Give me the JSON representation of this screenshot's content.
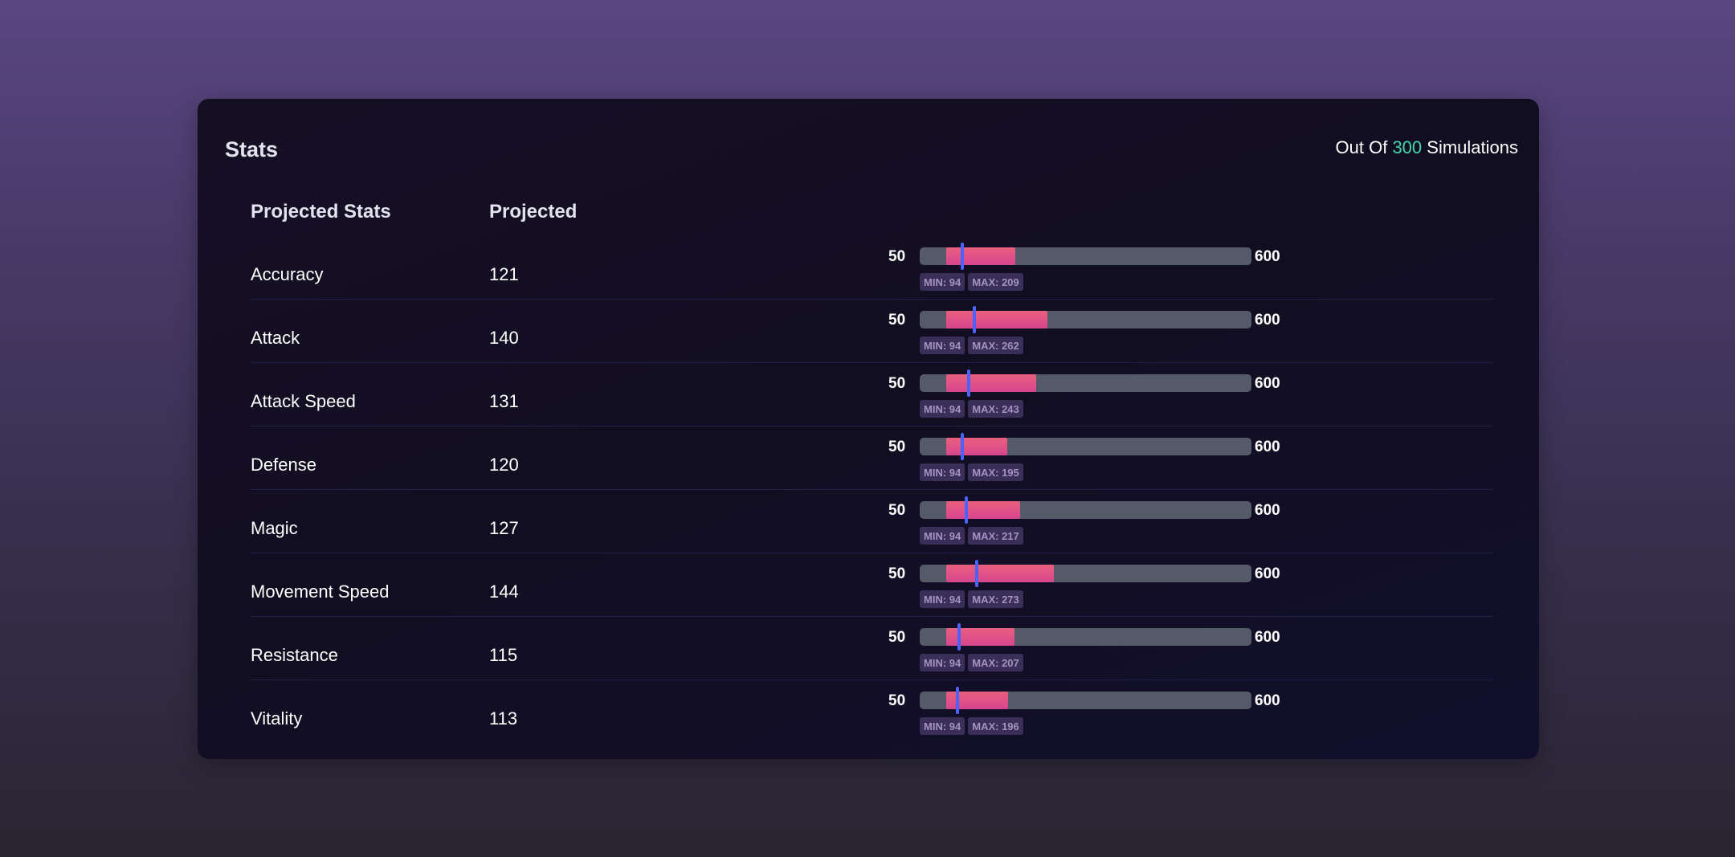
{
  "card": {
    "title": "Stats",
    "simulations": {
      "prefix": "Out Of",
      "count": "300",
      "suffix": "Simulations"
    }
  },
  "table": {
    "headers": {
      "stat": "Projected Stats",
      "projected": "Projected"
    },
    "range": {
      "min": 50,
      "max": 600,
      "min_label": "50",
      "max_label": "600"
    },
    "rows": [
      {
        "name": "Accuracy",
        "value": "121",
        "projected": 121,
        "min": 94,
        "max": 209,
        "min_label": "MIN: 94",
        "max_label": "MAX: 209"
      },
      {
        "name": "Attack",
        "value": "140",
        "projected": 140,
        "min": 94,
        "max": 262,
        "min_label": "MIN: 94",
        "max_label": "MAX: 262"
      },
      {
        "name": "Attack Speed",
        "value": "131",
        "projected": 131,
        "min": 94,
        "max": 243,
        "min_label": "MIN: 94",
        "max_label": "MAX: 243"
      },
      {
        "name": "Defense",
        "value": "120",
        "projected": 120,
        "min": 94,
        "max": 195,
        "min_label": "MIN: 94",
        "max_label": "MAX: 195"
      },
      {
        "name": "Magic",
        "value": "127",
        "projected": 127,
        "min": 94,
        "max": 217,
        "min_label": "MIN: 94",
        "max_label": "MAX: 217"
      },
      {
        "name": "Movement Speed",
        "value": "144",
        "projected": 144,
        "min": 94,
        "max": 273,
        "min_label": "MIN: 94",
        "max_label": "MAX: 273"
      },
      {
        "name": "Resistance",
        "value": "115",
        "projected": 115,
        "min": 94,
        "max": 207,
        "min_label": "MIN: 94",
        "max_label": "MAX: 207"
      },
      {
        "name": "Vitality",
        "value": "113",
        "projected": 113,
        "min": 94,
        "max": 196,
        "min_label": "MIN: 94",
        "max_label": "MAX: 196"
      }
    ]
  },
  "colors": {
    "accent_count": "#43d6ae",
    "bar_fill_top": "#e9607e",
    "bar_fill_bottom": "#d7458e",
    "marker": "#4a63ff",
    "track": "#545a67",
    "badge_bg": "#3a2f58",
    "badge_text": "#a392c4"
  }
}
